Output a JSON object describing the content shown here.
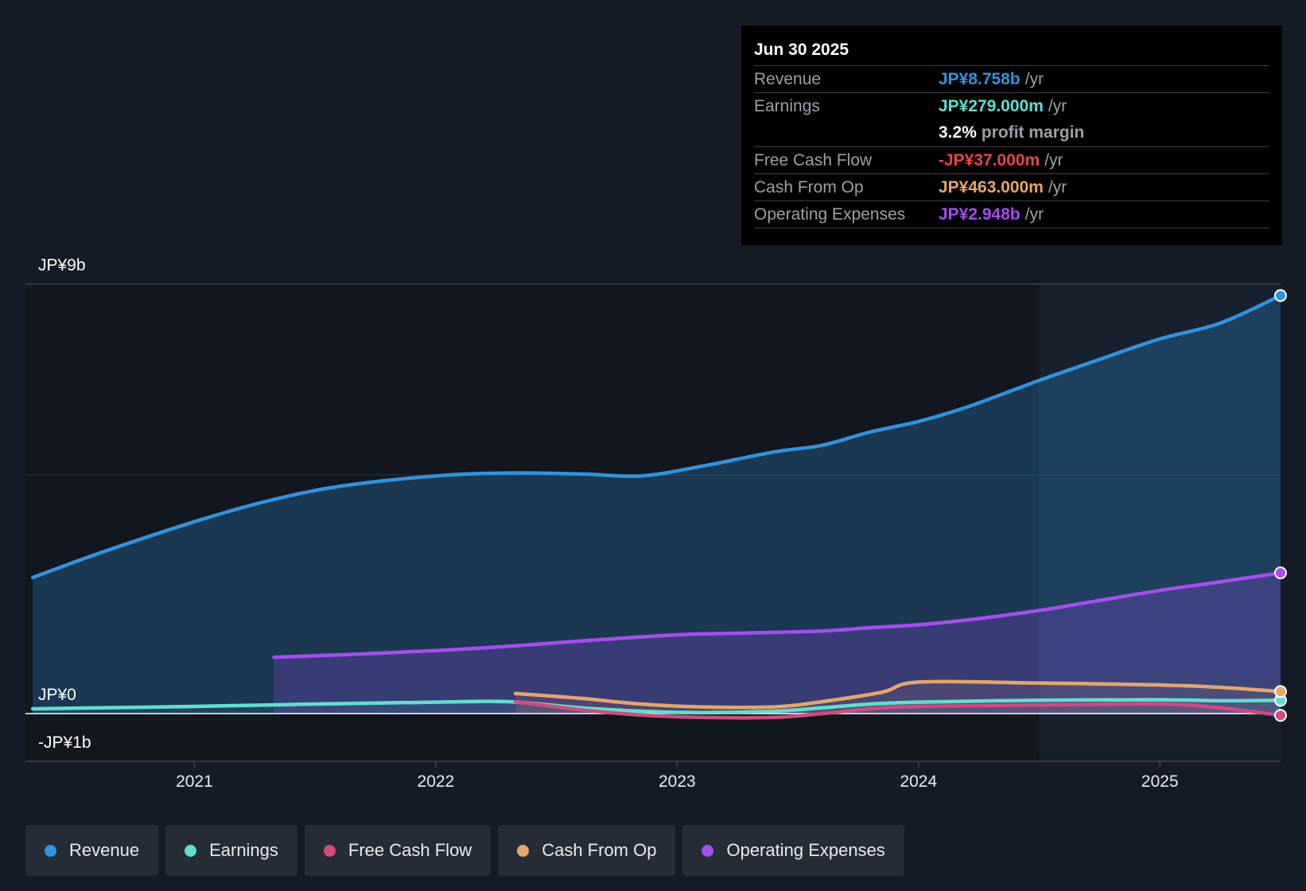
{
  "chart_data": {
    "type": "area",
    "y_labels": [
      "JP¥9b",
      "JP¥0",
      "-JP¥1b"
    ],
    "ylim": [
      -1,
      9
    ],
    "xlim": [
      2020.3,
      2025.5
    ],
    "x_ticks": [
      "2021",
      "2022",
      "2023",
      "2024",
      "2025"
    ],
    "highlight_from": 2024.5,
    "series": [
      {
        "name": "Revenue",
        "color": "#2e93e0",
        "x": [
          2020.33,
          2020.6,
          2021.0,
          2021.3,
          2021.6,
          2022.0,
          2022.3,
          2022.6,
          2022.85,
          2023.1,
          2023.4,
          2023.6,
          2023.8,
          2024.0,
          2024.2,
          2024.5,
          2024.75,
          2025.0,
          2025.25,
          2025.5
        ],
        "values": [
          2.85,
          3.35,
          4.02,
          4.45,
          4.76,
          4.98,
          5.04,
          5.02,
          4.98,
          5.18,
          5.48,
          5.62,
          5.9,
          6.12,
          6.42,
          6.98,
          7.42,
          7.85,
          8.18,
          8.758
        ]
      },
      {
        "name": "Operating Expenses",
        "color": "#a64cf0",
        "x": [
          2021.33,
          2021.6,
          2022.0,
          2022.3,
          2022.6,
          2023.0,
          2023.3,
          2023.6,
          2023.8,
          2024.0,
          2024.2,
          2024.5,
          2024.75,
          2025.0,
          2025.25,
          2025.5
        ],
        "values": [
          1.18,
          1.23,
          1.32,
          1.41,
          1.52,
          1.65,
          1.69,
          1.73,
          1.8,
          1.86,
          1.96,
          2.16,
          2.37,
          2.58,
          2.76,
          2.948
        ]
      },
      {
        "name": "Earnings",
        "color": "#5ee0cf",
        "x": [
          2020.33,
          2021.0,
          2021.5,
          2022.0,
          2022.3,
          2022.6,
          2022.85,
          2023.1,
          2023.4,
          2023.6,
          2023.8,
          2024.0,
          2024.5,
          2025.0,
          2025.25,
          2025.5
        ],
        "values": [
          0.1,
          0.15,
          0.2,
          0.24,
          0.25,
          0.12,
          0.05,
          0.02,
          0.05,
          0.12,
          0.2,
          0.24,
          0.28,
          0.29,
          0.27,
          0.279
        ]
      },
      {
        "name": "Free Cash Flow",
        "color": "#d5497f",
        "x": [
          2022.33,
          2022.6,
          2022.85,
          2023.1,
          2023.4,
          2023.6,
          2023.8,
          2024.0,
          2024.5,
          2025.0,
          2025.25,
          2025.5
        ],
        "values": [
          0.25,
          0.08,
          -0.03,
          -0.08,
          -0.08,
          0.0,
          0.1,
          0.15,
          0.18,
          0.2,
          0.12,
          -0.037
        ]
      },
      {
        "name": "Cash From Op",
        "color": "#e8a566",
        "x": [
          2022.33,
          2022.6,
          2022.85,
          2023.1,
          2023.4,
          2023.6,
          2023.85,
          2024.0,
          2024.5,
          2025.0,
          2025.25,
          2025.5
        ],
        "values": [
          0.42,
          0.32,
          0.2,
          0.14,
          0.14,
          0.25,
          0.45,
          0.66,
          0.64,
          0.6,
          0.55,
          0.463
        ]
      }
    ]
  },
  "tooltip": {
    "date": "Jun 30 2025",
    "revenue_label": "Revenue",
    "revenue_value": "JP¥8.758b",
    "revenue_unit": "/yr",
    "earnings_label": "Earnings",
    "earnings_value": "JP¥279.000m",
    "earnings_unit": "/yr",
    "margin_value": "3.2%",
    "margin_text": "profit margin",
    "fcf_label": "Free Cash Flow",
    "fcf_value": "-JP¥37.000m",
    "fcf_unit": "/yr",
    "cfo_label": "Cash From Op",
    "cfo_value": "JP¥463.000m",
    "cfo_unit": "/yr",
    "opex_label": "Operating Expenses",
    "opex_value": "JP¥2.948b",
    "opex_unit": "/yr"
  },
  "legend": [
    {
      "label": "Revenue",
      "color": "#2e93e0"
    },
    {
      "label": "Earnings",
      "color": "#5ee0cf"
    },
    {
      "label": "Free Cash Flow",
      "color": "#d5497f"
    },
    {
      "label": "Cash From Op",
      "color": "#e8a566"
    },
    {
      "label": "Operating Expenses",
      "color": "#a64cf0"
    }
  ]
}
